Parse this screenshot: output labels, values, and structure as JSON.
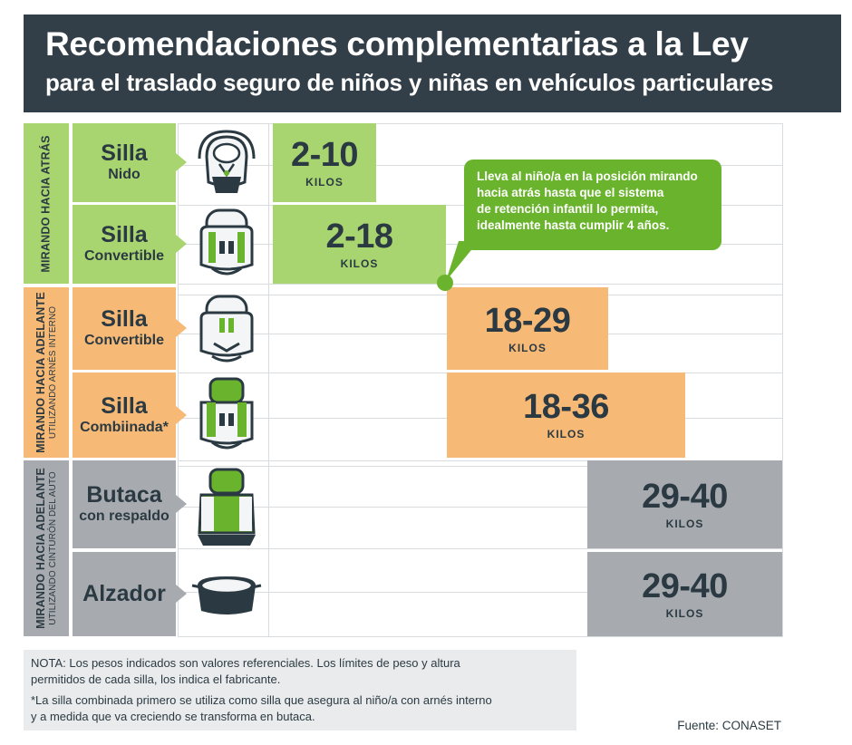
{
  "header": {
    "title": "Recomendaciones complementarias a la Ley",
    "subtitle": "para el traslado seguro de niños y niñas en vehículos particulares"
  },
  "colors": {
    "header_bg": "#333f48",
    "green": "#a8d56f",
    "green_callout": "#6ab42d",
    "orange": "#f7b976",
    "gray": "#a7abaf",
    "text": "#2b3a42"
  },
  "sections": [
    {
      "title": "MIRANDO HACIA ATRÁS",
      "subtitle": "",
      "color": "#a8d56f"
    },
    {
      "title": "MIRANDO HACIA ADELANTE",
      "subtitle": "UTILIZANDO ARNÉS INTERNO",
      "color": "#f7b976"
    },
    {
      "title": "MIRANDO HACIA ADELANTE",
      "subtitle": "UTILIZANDO CINTURÓN DEL AUTO",
      "color": "#a7abaf"
    }
  ],
  "rows": [
    {
      "line1": "Silla",
      "line2": "Nido",
      "range": "2-10",
      "unit": "KILOS",
      "seat_icon": "infant-carrier-icon",
      "start_kg": 2,
      "end_kg": 10
    },
    {
      "line1": "Silla",
      "line2": "Convertible",
      "range": "2-18",
      "unit": "KILOS",
      "seat_icon": "convertible-seat-icon",
      "start_kg": 2,
      "end_kg": 18
    },
    {
      "line1": "Silla",
      "line2": "Convertible",
      "range": "18-29",
      "unit": "KILOS",
      "seat_icon": "convertible-seat-icon",
      "start_kg": 18,
      "end_kg": 29
    },
    {
      "line1": "Silla",
      "line2": "Combiinada*",
      "range": "18-36",
      "unit": "KILOS",
      "seat_icon": "combination-seat-icon",
      "start_kg": 18,
      "end_kg": 36
    },
    {
      "line1": "Butaca",
      "line2": "con respaldo",
      "range": "29-40",
      "unit": "KILOS",
      "seat_icon": "high-back-booster-icon",
      "start_kg": 29,
      "end_kg": 40
    },
    {
      "line1": "Alzador",
      "line2": "",
      "range": "29-40",
      "unit": "KILOS",
      "seat_icon": "booster-cushion-icon",
      "start_kg": 29,
      "end_kg": 40
    }
  ],
  "callout": {
    "lines": [
      "Lleva al niño/a en la posición mirando",
      "hacia atrás hasta que el sistema",
      "de retención infantil lo permita,",
      "idealmente hasta cumplir 4 años."
    ]
  },
  "note": {
    "line1": "NOTA: Los pesos indicados son valores referenciales. Los límites de peso y altura",
    "line2": "permitidos de cada silla, los indica el fabricante.",
    "line3": "*La silla combinada primero se utiliza como silla que asegura al niño/a con arnés interno",
    "line4": "y a medida que va creciendo se transforma en butaca."
  },
  "source": "Fuente: CONASET"
}
